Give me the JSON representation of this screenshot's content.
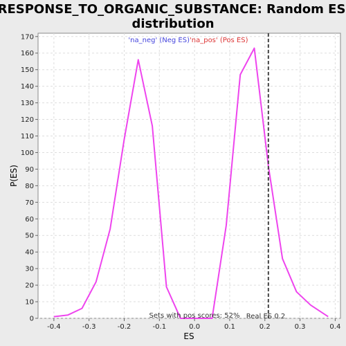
{
  "chart_data": {
    "type": "line",
    "title_line1": "RESPONSE_TO_ORGANIC_SUBSTANCE: Random ES",
    "title_line2": "distribution",
    "xlabel": "ES",
    "ylabel": "P(ES)",
    "xlim": [
      -0.445,
      0.415
    ],
    "ylim": [
      0,
      172
    ],
    "x_ticks": [
      -0.4,
      -0.3,
      -0.2,
      -0.1,
      0.0,
      0.1,
      0.2,
      0.3,
      0.4
    ],
    "x_tick_labels": [
      "-0.4",
      "-0.3",
      "-0.2",
      "-0.1",
      "0.0",
      "0.1",
      "0.2",
      "0.3",
      "0.4"
    ],
    "y_ticks": [
      0,
      10,
      20,
      30,
      40,
      50,
      60,
      70,
      80,
      90,
      100,
      110,
      120,
      130,
      140,
      150,
      160,
      170
    ],
    "y_tick_labels": [
      "0",
      "10",
      "20",
      "30",
      "40",
      "50",
      "60",
      "70",
      "80",
      "90",
      "100",
      "110",
      "120",
      "130",
      "140",
      "150",
      "160",
      "170"
    ],
    "grid": true,
    "legend": {
      "placement": "top-center",
      "neg_label": "'na_neg' (Neg ES)",
      "pos_label": "'na_pos' (Pos ES)",
      "neg_color": "#4444dd",
      "pos_color": "#dd3333"
    },
    "series": [
      {
        "color": "#ee44ee",
        "x": [
          -0.4,
          -0.36,
          -0.32,
          -0.28,
          -0.24,
          -0.2,
          -0.16,
          -0.12,
          -0.08,
          -0.04,
          0.0,
          0.05,
          0.09,
          0.13,
          0.17,
          0.21,
          0.25,
          0.29,
          0.33,
          0.38
        ],
        "y": [
          1,
          2,
          6,
          22,
          54,
          108,
          156,
          116,
          19,
          0,
          0,
          0,
          56,
          147,
          163,
          92,
          36,
          16,
          8,
          1
        ]
      }
    ],
    "real_es": {
      "value": 0.21,
      "label": "Real ES 0.2",
      "color": "#444444"
    },
    "annotation": "Sets with pos scores: 52%"
  }
}
